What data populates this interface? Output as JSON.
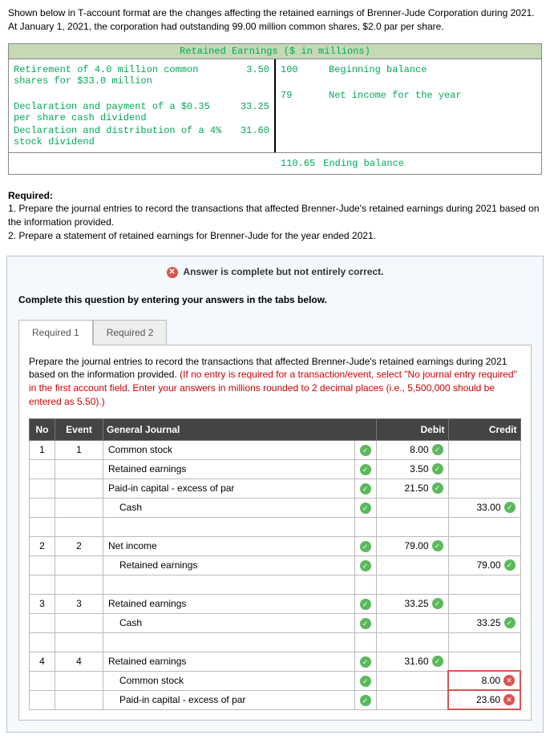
{
  "intro": "Shown below in T-account format are the changes affecting the retained earnings of Brenner-Jude Corporation during 2021. At January 1, 2021, the corporation had outstanding 99.00 million common shares, $2.0 par per share.",
  "t_account": {
    "title": "Retained Earnings ($ in millions)",
    "left_rows": [
      {
        "desc": "Retirement of 4.0 million common shares for $33.0 million",
        "amt": "3.50"
      },
      {
        "desc": "",
        "amt": ""
      },
      {
        "desc": "Declaration and payment of a $0.35 per share cash dividend",
        "amt": "33.25"
      },
      {
        "desc": "Declaration and distribution of a 4% stock dividend",
        "amt": "31.60"
      }
    ],
    "right_rows": [
      {
        "amt": "100",
        "desc": "Beginning balance"
      },
      {
        "amt": "",
        "desc": ""
      },
      {
        "amt": "79",
        "desc": "Net income for the year"
      },
      {
        "amt": "",
        "desc": ""
      }
    ],
    "ending": {
      "amt": "110.65",
      "desc": "Ending balance"
    }
  },
  "required": {
    "heading": "Required:",
    "r1": "1. Prepare the journal entries to record the transactions that affected Brenner-Jude's retained earnings during 2021 based on the information provided.",
    "r2": "2. Prepare a statement of retained earnings for Brenner-Jude for the year ended 2021."
  },
  "status": "Answer is complete but not entirely correct.",
  "instruct": "Complete this question by entering your answers in the tabs below.",
  "tabs": {
    "t1": "Required 1",
    "t2": "Required 2"
  },
  "prepare": {
    "black": "Prepare the journal entries to record the transactions that affected Brenner-Jude's retained earnings during 2021 based on the information provided. ",
    "red": "(If no entry is required for a transaction/event, select \"No journal entry required\" in the first account field. Enter your answers in millions rounded to 2 decimal places (i.e., 5,500,000 should be entered as 5.50).)"
  },
  "headers": {
    "no": "No",
    "event": "Event",
    "gj": "General Journal",
    "debit": "Debit",
    "credit": "Credit"
  },
  "rows": [
    {
      "no": "1",
      "event": "1",
      "acct": "Common stock",
      "indent": 0,
      "chk": "ok",
      "debit": "8.00",
      "d_chk": "ok",
      "credit": "",
      "c_chk": ""
    },
    {
      "no": "",
      "event": "",
      "acct": "Retained earnings",
      "indent": 0,
      "chk": "ok",
      "debit": "3.50",
      "d_chk": "ok",
      "credit": "",
      "c_chk": ""
    },
    {
      "no": "",
      "event": "",
      "acct": "Paid-in capital - excess of par",
      "indent": 0,
      "chk": "ok",
      "debit": "21.50",
      "d_chk": "ok",
      "credit": "",
      "c_chk": ""
    },
    {
      "no": "",
      "event": "",
      "acct": "Cash",
      "indent": 1,
      "chk": "ok",
      "debit": "",
      "d_chk": "",
      "credit": "33.00",
      "c_chk": "ok"
    },
    {
      "no": "",
      "event": "",
      "acct": "",
      "indent": 0,
      "chk": "",
      "debit": "",
      "d_chk": "",
      "credit": "",
      "c_chk": ""
    },
    {
      "no": "2",
      "event": "2",
      "acct": "Net income",
      "indent": 0,
      "chk": "ok",
      "debit": "79.00",
      "d_chk": "ok",
      "credit": "",
      "c_chk": ""
    },
    {
      "no": "",
      "event": "",
      "acct": "Retained earnings",
      "indent": 1,
      "chk": "ok",
      "debit": "",
      "d_chk": "",
      "credit": "79.00",
      "c_chk": "ok"
    },
    {
      "no": "",
      "event": "",
      "acct": "",
      "indent": 0,
      "chk": "",
      "debit": "",
      "d_chk": "",
      "credit": "",
      "c_chk": ""
    },
    {
      "no": "3",
      "event": "3",
      "acct": "Retained earnings",
      "indent": 0,
      "chk": "ok",
      "debit": "33.25",
      "d_chk": "ok",
      "credit": "",
      "c_chk": ""
    },
    {
      "no": "",
      "event": "",
      "acct": "Cash",
      "indent": 1,
      "chk": "ok",
      "debit": "",
      "d_chk": "",
      "credit": "33.25",
      "c_chk": "ok"
    },
    {
      "no": "",
      "event": "",
      "acct": "",
      "indent": 0,
      "chk": "",
      "debit": "",
      "d_chk": "",
      "credit": "",
      "c_chk": ""
    },
    {
      "no": "4",
      "event": "4",
      "acct": "Retained earnings",
      "indent": 0,
      "chk": "ok",
      "debit": "31.60",
      "d_chk": "ok",
      "credit": "",
      "c_chk": ""
    },
    {
      "no": "",
      "event": "",
      "acct": "Common stock",
      "indent": 1,
      "chk": "ok",
      "debit": "",
      "d_chk": "",
      "credit": "8.00",
      "c_chk": "bad"
    },
    {
      "no": "",
      "event": "",
      "acct": "Paid-in capital - excess of par",
      "indent": 1,
      "chk": "ok",
      "debit": "",
      "d_chk": "",
      "credit": "23.60",
      "c_chk": "bad"
    }
  ]
}
